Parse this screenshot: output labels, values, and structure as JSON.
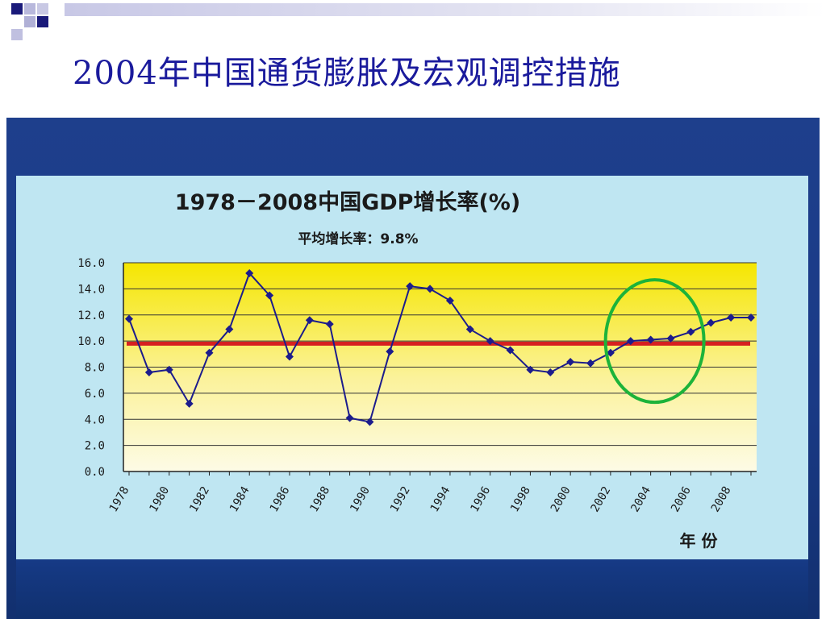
{
  "slide": {
    "title": "2004年中国通货膨胀及宏观调控措施"
  },
  "colors": {
    "title": "#1a1a9c",
    "series_line": "#1c1c8c",
    "average_line": "#d62020",
    "highlight_ellipse": "#1db33a",
    "plot_top": "#f5e600",
    "plot_bottom": "#fdfbe6",
    "panel": "#bfe6f2",
    "frame": "#1d3d8a"
  },
  "chart_data": {
    "type": "line",
    "title": "1978－2008中国GDP增长率(%)",
    "subtitle": "平均增长率：9.8%",
    "xlabel": "年 份",
    "ylabel": "",
    "ylim": [
      0,
      16
    ],
    "yticks": [
      "0.0",
      "2.0",
      "4.0",
      "6.0",
      "8.0",
      "10.0",
      "12.0",
      "14.0",
      "16.0"
    ],
    "xticks": [
      "1978",
      "1980",
      "1982",
      "1984",
      "1986",
      "1988",
      "1990",
      "1992",
      "1994",
      "1996",
      "1998",
      "2000",
      "2002",
      "2004",
      "2006",
      "2008"
    ],
    "grid": true,
    "x": [
      1978,
      1979,
      1980,
      1981,
      1982,
      1983,
      1984,
      1985,
      1986,
      1987,
      1988,
      1989,
      1990,
      1991,
      1992,
      1993,
      1994,
      1995,
      1996,
      1997,
      1998,
      1999,
      2000,
      2001,
      2002,
      2003,
      2004,
      2005,
      2006,
      2007,
      2008,
      2009
    ],
    "values": [
      11.7,
      7.6,
      7.8,
      5.2,
      9.1,
      10.9,
      15.2,
      13.5,
      8.8,
      11.6,
      11.3,
      4.1,
      3.8,
      9.2,
      14.2,
      14.0,
      13.1,
      10.9,
      10.0,
      9.3,
      7.8,
      7.6,
      8.4,
      8.3,
      9.1,
      10.0,
      10.1,
      10.2,
      10.7,
      11.4,
      11.8,
      11.8
    ],
    "average": 9.8,
    "highlight": {
      "x": 2004.2,
      "y": 10.0
    }
  }
}
